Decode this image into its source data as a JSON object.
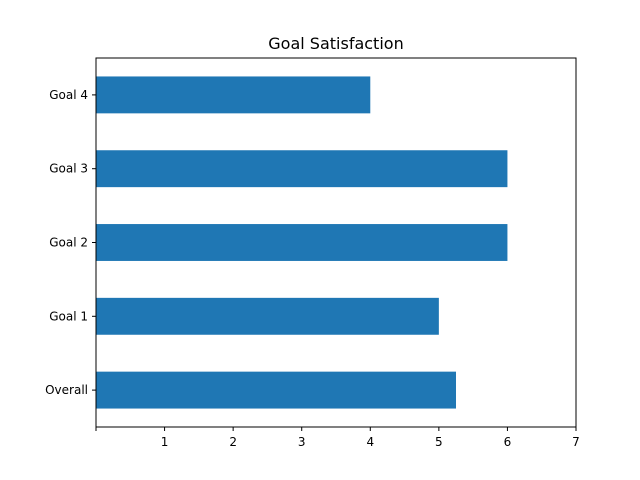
{
  "chart_data": {
    "type": "bar",
    "orientation": "horizontal",
    "title": "Goal Satisfaction",
    "xlabel": "",
    "ylabel": "",
    "categories": [
      "Overall",
      "Goal 1",
      "Goal 2",
      "Goal 3",
      "Goal 4"
    ],
    "values": [
      5.25,
      5,
      6,
      6,
      4
    ],
    "xlim": [
      0,
      7
    ],
    "xticks": [
      "1",
      "2",
      "3",
      "4",
      "5",
      "6",
      "7"
    ],
    "bar_color": "#1f77b4",
    "grid": false,
    "legend": "none"
  }
}
